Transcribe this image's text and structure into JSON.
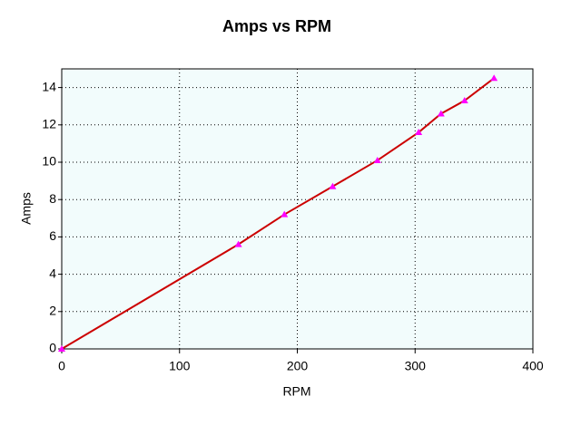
{
  "chart_data": {
    "type": "line",
    "title": "Amps vs RPM",
    "x_label": "RPM",
    "y_label": "Amps",
    "series": [
      {
        "name": "Amps",
        "color": "#cc0000",
        "marker_color": "#ff00ff",
        "x": [
          0,
          150,
          189,
          230,
          268,
          303,
          322,
          342,
          367
        ],
        "values": [
          0,
          5.6,
          7.2,
          8.7,
          10.1,
          11.6,
          12.6,
          13.3,
          14.5
        ]
      }
    ],
    "xlim": [
      0,
      400
    ],
    "xticks": [
      0,
      100,
      200,
      300,
      400
    ],
    "ylim": [
      0,
      15
    ],
    "yticks": [
      0,
      2,
      4,
      6,
      8,
      10,
      12,
      14
    ],
    "grid": true,
    "plot_background": "#f2fcfc"
  }
}
